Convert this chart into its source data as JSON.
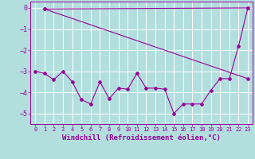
{
  "title": "",
  "xlabel": "Windchill (Refroidissement éolien,°C)",
  "background_color": "#b2dede",
  "grid_color": "#ffffff",
  "line_color": "#990099",
  "x_ticks": [
    0,
    1,
    2,
    3,
    4,
    5,
    6,
    7,
    8,
    9,
    10,
    11,
    12,
    13,
    14,
    15,
    16,
    17,
    18,
    19,
    20,
    21,
    22,
    23
  ],
  "y_ticks": [
    0,
    -1,
    -2,
    -3,
    -4,
    -5
  ],
  "xlim": [
    -0.5,
    23.5
  ],
  "ylim": [
    -5.5,
    0.3
  ],
  "line1_x": [
    0,
    1,
    2,
    3,
    4,
    5,
    6,
    7,
    8,
    9,
    10,
    11,
    12,
    13,
    14,
    15,
    16,
    17,
    18,
    19,
    20,
    21,
    22,
    23
  ],
  "line1_y": [
    -3.0,
    -3.1,
    -3.4,
    -3.0,
    -3.5,
    -4.35,
    -4.55,
    -3.5,
    -4.3,
    -3.8,
    -3.85,
    -3.1,
    -3.8,
    -3.8,
    -3.85,
    -5.0,
    -4.55,
    -4.55,
    -4.55,
    -3.9,
    -3.35,
    -3.35,
    -1.8,
    0.0
  ],
  "line2_x": [
    1,
    23
  ],
  "line2_y": [
    -0.05,
    0.0
  ],
  "line3_x": [
    1,
    23
  ],
  "line3_y": [
    -0.05,
    -3.35
  ]
}
